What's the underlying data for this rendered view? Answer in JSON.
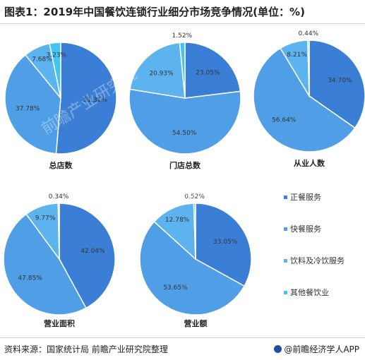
{
  "header": {
    "title": "图表1：2019年中国餐饮连锁行业细分市场竞争情况(单位：%)"
  },
  "footer": {
    "source": "资料来源：国家统计局 前瞻产业研究院整理",
    "brand": "@前瞻经济学人APP"
  },
  "watermark": "前瞻产业研究院",
  "colors": {
    "正餐服务": "#3a7fd5",
    "快餐服务": "#4f9ee6",
    "饮料及冷饮服务": "#5db3ee",
    "其他餐饮业": "#44c4f2"
  },
  "chart_data": {
    "type": "pie",
    "categories": [
      "正餐服务",
      "快餐服务",
      "饮料及冷饮服务",
      "其他餐饮业"
    ],
    "legend_position": "right",
    "charts": [
      {
        "name": "总店数",
        "values": [
          51.31,
          37.78,
          7.68,
          3.23
        ],
        "labels": [
          "51.31%",
          "37.78%",
          "7.68%",
          "3.23%"
        ]
      },
      {
        "name": "门店总数",
        "values": [
          23.05,
          54.5,
          20.93,
          1.52
        ],
        "labels": [
          "23.05%",
          "54.50%",
          "20.93%",
          "1.52%"
        ]
      },
      {
        "name": "从业人数",
        "values": [
          34.7,
          56.64,
          8.21,
          0.44
        ],
        "labels": [
          "34.70%",
          "56.64%",
          "8.21%",
          "0.44%"
        ]
      },
      {
        "name": "营业面积",
        "values": [
          42.04,
          47.85,
          9.77,
          0.34
        ],
        "labels": [
          "42.04%",
          "47.85%",
          "9.77%",
          "0.34%"
        ]
      },
      {
        "name": "营业额",
        "values": [
          33.05,
          53.65,
          12.78,
          0.52
        ],
        "labels": [
          "33.05%",
          "53.65%",
          "12.78%",
          "0.52%"
        ]
      }
    ]
  }
}
